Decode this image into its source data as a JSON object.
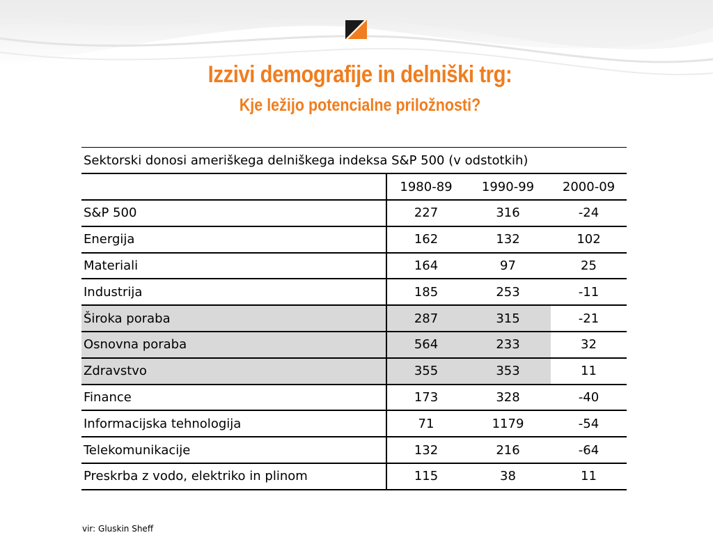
{
  "slide": {
    "title": "Izzivi demografije in delniški trg:",
    "subtitle": "Kje ležijo potencialne priložnosti?",
    "logo": "orange-black-diagonal-square-icon",
    "accent_color": "#f07d1e"
  },
  "table": {
    "caption": "Sektorski donosi ameriškega delniškega indeksa S&P 500 (v odstotkih)",
    "columns": [
      "1980-89",
      "1990-99",
      "2000-09"
    ],
    "rows": [
      {
        "label": "S&P 500",
        "values": [
          "227",
          "316",
          "-24"
        ],
        "shaded": false
      },
      {
        "label": "Energija",
        "values": [
          "162",
          "132",
          "102"
        ],
        "shaded": false
      },
      {
        "label": "Materiali",
        "values": [
          "164",
          "97",
          "25"
        ],
        "shaded": false
      },
      {
        "label": "Industrija",
        "values": [
          "185",
          "253",
          "-11"
        ],
        "shaded": false
      },
      {
        "label": "Široka poraba",
        "values": [
          "287",
          "315",
          "-21"
        ],
        "shaded": true
      },
      {
        "label": "Osnovna poraba",
        "values": [
          "564",
          "233",
          "32"
        ],
        "shaded": true
      },
      {
        "label": "Zdravstvo",
        "values": [
          "355",
          "353",
          "11"
        ],
        "shaded": true
      },
      {
        "label": "Finance",
        "values": [
          "173",
          "328",
          "-40"
        ],
        "shaded": false
      },
      {
        "label": "Informacijska tehnologija",
        "values": [
          "71",
          "1179",
          "-54"
        ],
        "shaded": false
      },
      {
        "label": "Telekomunikacije",
        "values": [
          "132",
          "216",
          "-64"
        ],
        "shaded": false
      },
      {
        "label": "Preskrba z vodo, elektriko in plinom",
        "values": [
          "115",
          "38",
          "11"
        ],
        "shaded": false
      }
    ],
    "shade_color": "#d9d9d9"
  },
  "source": "vir: Gluskin Sheff"
}
